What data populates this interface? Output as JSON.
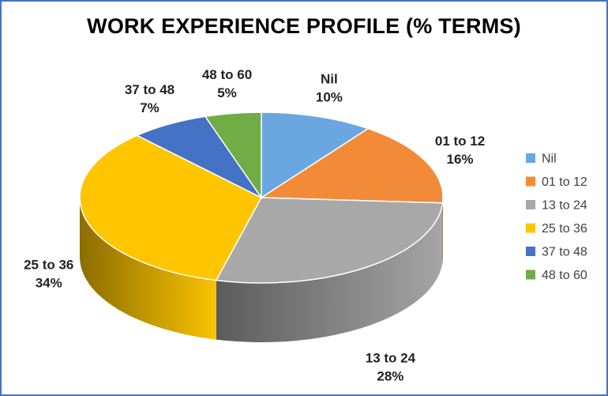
{
  "chart_data": {
    "type": "pie",
    "title": "WORK EXPERIENCE PROFILE (% TERMS)",
    "legend_position": "right",
    "slices": [
      {
        "label": "Nil",
        "value": 10,
        "display": "10%",
        "color": "#6aa7e0"
      },
      {
        "label": "01 to 12",
        "value": 16,
        "display": "16%",
        "color": "#f28a37"
      },
      {
        "label": "13 to 24",
        "value": 28,
        "display": "28%",
        "color": "#a8a8a8"
      },
      {
        "label": "25 to 36",
        "value": 34,
        "display": "34%",
        "color": "#ffc600"
      },
      {
        "label": "37 to 48",
        "value": 7,
        "display": "7%",
        "color": "#4472c4"
      },
      {
        "label": "48 to 60",
        "value": 5,
        "display": "5%",
        "color": "#70ad47"
      }
    ]
  }
}
